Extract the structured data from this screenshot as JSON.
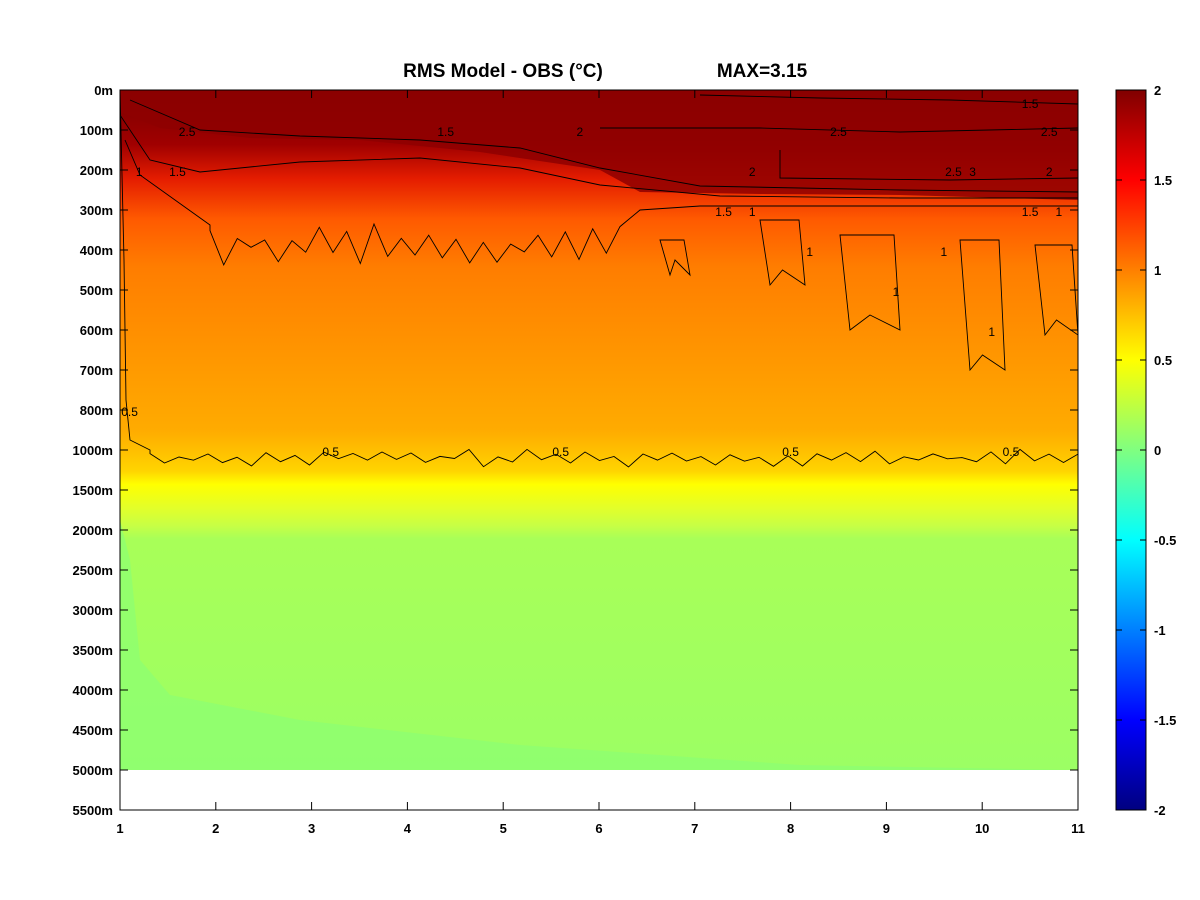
{
  "chart_data": {
    "type": "heatmap",
    "title": "RMS Model - OBS (°C)",
    "max_label": "MAX=3.15",
    "xlabel": "",
    "ylabel": "",
    "x_ticks": [
      "1",
      "2",
      "3",
      "4",
      "5",
      "6",
      "7",
      "8",
      "9",
      "10",
      "11"
    ],
    "xlim": [
      1,
      11
    ],
    "y_ticks": [
      "0m",
      "100m",
      "200m",
      "300m",
      "400m",
      "500m",
      "600m",
      "700m",
      "800m",
      "1000m",
      "1500m",
      "2000m",
      "2500m",
      "3000m",
      "3500m",
      "4000m",
      "4500m",
      "5000m",
      "5500m"
    ],
    "colorbar": {
      "range": [
        -2,
        2
      ],
      "ticks": [
        "2",
        "1.5",
        "1",
        "0.5",
        "0",
        "-0.5",
        "-1",
        "-1.5",
        "-2"
      ],
      "colormap": "jet"
    },
    "contour_levels": [
      0.5,
      1,
      1.5,
      2,
      2.5,
      3
    ],
    "contour_labels": [
      {
        "text": "0.5",
        "x": 1.1,
        "y": "800m"
      },
      {
        "text": "0.5",
        "x": 3.2,
        "y": "1000m"
      },
      {
        "text": "0.5",
        "x": 5.6,
        "y": "1000m"
      },
      {
        "text": "0.5",
        "x": 8.0,
        "y": "1000m"
      },
      {
        "text": "0.5",
        "x": 10.3,
        "y": "1000m"
      },
      {
        "text": "1",
        "x": 1.2,
        "y": "200m"
      },
      {
        "text": "1",
        "x": 7.6,
        "y": "300m"
      },
      {
        "text": "1",
        "x": 8.2,
        "y": "400m"
      },
      {
        "text": "1",
        "x": 9.1,
        "y": "500m"
      },
      {
        "text": "1",
        "x": 9.6,
        "y": "400m"
      },
      {
        "text": "1",
        "x": 10.1,
        "y": "600m"
      },
      {
        "text": "1",
        "x": 10.8,
        "y": "300m"
      },
      {
        "text": "1.5",
        "x": 1.6,
        "y": "200m"
      },
      {
        "text": "1.5",
        "x": 4.4,
        "y": "100m"
      },
      {
        "text": "1.5",
        "x": 7.3,
        "y": "300m"
      },
      {
        "text": "1.5",
        "x": 10.5,
        "y": "0m"
      },
      {
        "text": "1.5",
        "x": 10.5,
        "y": "300m"
      },
      {
        "text": "2",
        "x": 5.8,
        "y": "100m"
      },
      {
        "text": "2",
        "x": 7.6,
        "y": "200m"
      },
      {
        "text": "2",
        "x": 10.7,
        "y": "200m"
      },
      {
        "text": "2.5",
        "x": 1.7,
        "y": "100m"
      },
      {
        "text": "2.5",
        "x": 8.5,
        "y": "100m"
      },
      {
        "text": "2.5",
        "x": 9.7,
        "y": "200m"
      },
      {
        "text": "2.5",
        "x": 10.7,
        "y": "100m"
      },
      {
        "text": "3",
        "x": 9.9,
        "y": "200m"
      }
    ],
    "field_profile": [
      {
        "depth": "0m",
        "mean_rms": 2.6
      },
      {
        "depth": "100m",
        "mean_rms": 2.1
      },
      {
        "depth": "200m",
        "mean_rms": 1.7
      },
      {
        "depth": "300m",
        "mean_rms": 1.15
      },
      {
        "depth": "400m",
        "mean_rms": 0.98
      },
      {
        "depth": "500m",
        "mean_rms": 0.92
      },
      {
        "depth": "600m",
        "mean_rms": 0.85
      },
      {
        "depth": "700m",
        "mean_rms": 0.8
      },
      {
        "depth": "800m",
        "mean_rms": 0.72
      },
      {
        "depth": "1000m",
        "mean_rms": 0.5
      },
      {
        "depth": "1500m",
        "mean_rms": 0.4
      },
      {
        "depth": "2000m",
        "mean_rms": 0.3
      },
      {
        "depth": "5000m",
        "mean_rms": 0.25
      }
    ]
  }
}
